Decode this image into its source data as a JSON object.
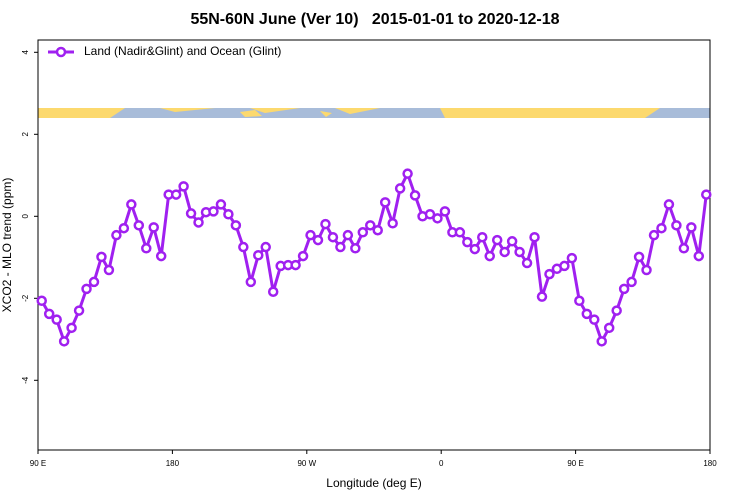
{
  "chart_data": {
    "type": "line",
    "title": "55N-60N June (Ver 10)   2015-01-01 to 2020-12-18",
    "x_label": "Longitude (deg E)",
    "y_label": "XCO2 - MLO trend (ppm)",
    "xlim": [
      90,
      540
    ],
    "xticks": [
      {
        "value": 90,
        "label": "90 E"
      },
      {
        "value": 180,
        "label": "180"
      },
      {
        "value": 270,
        "label": "90 W"
      },
      {
        "value": 360,
        "label": "0"
      },
      {
        "value": 450,
        "label": "90 E"
      },
      {
        "value": 540,
        "label": "180"
      }
    ],
    "ylim": [
      -5.7,
      4.3
    ],
    "yticks": [
      -4,
      -2,
      0,
      2,
      4
    ],
    "grid": false,
    "legend": "top-left",
    "x": [
      92.5,
      97.5,
      102.5,
      107.5,
      112.5,
      117.5,
      122.5,
      127.5,
      132.5,
      137.5,
      142.5,
      147.5,
      152.5,
      157.5,
      162.5,
      167.5,
      172.5,
      177.5,
      182.5,
      187.5,
      192.5,
      197.5,
      202.5,
      207.5,
      212.5,
      217.5,
      222.5,
      227.5,
      232.5,
      237.5,
      242.5,
      247.5,
      252.5,
      257.5,
      262.5,
      267.5,
      272.5,
      277.5,
      282.5,
      287.5,
      292.5,
      297.5,
      302.5,
      307.5,
      312.5,
      317.5,
      322.5,
      327.5,
      332.5,
      337.5,
      342.5,
      347.5,
      352.5,
      357.5,
      362.5,
      367.5,
      372.5,
      377.5,
      382.5,
      387.5,
      392.5,
      397.5,
      402.5,
      407.5,
      412.5,
      417.5,
      422.5,
      427.5,
      432.5,
      437.5,
      442.5,
      447.5,
      452.5,
      457.5,
      462.5,
      467.5,
      472.5,
      477.5,
      482.5,
      487.5,
      492.5,
      497.5,
      502.5,
      507.5,
      512.5,
      517.5,
      522.5,
      527.5,
      532.5,
      537.5
    ],
    "series": [
      {
        "name": "Land (Nadir&Glint) and Ocean (Glint)",
        "color": "#a020f0",
        "values": [
          -2.06,
          -2.38,
          -2.52,
          -3.05,
          -2.72,
          -2.3,
          -1.77,
          -1.6,
          -0.99,
          -1.31,
          -0.46,
          -0.29,
          0.29,
          -0.22,
          -0.78,
          -0.27,
          -0.97,
          0.53,
          0.53,
          0.73,
          0.07,
          -0.15,
          0.1,
          0.12,
          0.29,
          0.05,
          -0.22,
          -0.75,
          -1.6,
          -0.95,
          -0.75,
          -1.84,
          -1.21,
          -1.19,
          -1.19,
          -0.97,
          -0.46,
          -0.58,
          -0.19,
          -0.51,
          -0.75,
          -0.46,
          -0.78,
          -0.39,
          -0.22,
          -0.34,
          0.34,
          -0.17,
          0.68,
          1.04,
          0.51,
          0,
          0.05,
          -0.05,
          0.12,
          -0.39,
          -0.39,
          -0.63,
          -0.8,
          -0.51,
          -0.97,
          -0.58,
          -0.87,
          -0.61,
          -0.87,
          -1.14,
          -0.51,
          -1.96,
          -1.41,
          -1.28,
          -1.21,
          -1.02,
          -2.06,
          -2.38,
          -2.52,
          -3.05,
          -2.72,
          -2.3,
          -1.77,
          -1.6,
          -0.99,
          -1.31,
          -0.46,
          -0.29,
          0.29,
          -0.22,
          -0.78,
          -0.27,
          -0.97,
          0.53
        ]
      }
    ]
  }
}
